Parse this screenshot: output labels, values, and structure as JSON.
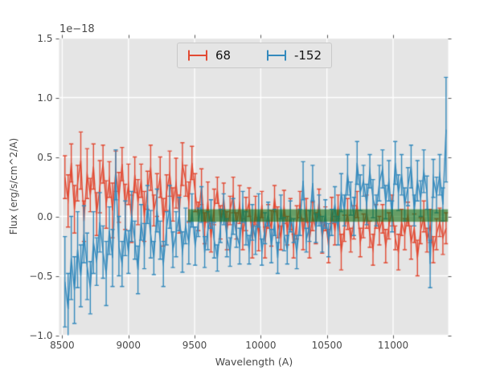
{
  "figure": {
    "offset_text": "1e−18",
    "xlabel": "Wavelength (A)",
    "ylabel": "Flux (erg/s/cm^2/A)",
    "colors": {
      "page_background": "#ffffff",
      "axes_background": "#e5e5e5",
      "grid": "#ffffff",
      "tick": "#555555",
      "label_text": "#4a4a4a",
      "legend_background": "#e5e5e5",
      "legend_border": "#c9c9c9",
      "legend_text": "#141414"
    }
  },
  "legend": {
    "entries": [
      {
        "label": "68"
      },
      {
        "label": "-152"
      }
    ]
  },
  "chart_data": {
    "type": "line",
    "style": "errorbar",
    "title": "",
    "xlabel": "Wavelength (A)",
    "ylabel": "Flux (erg/s/cm^2/A)",
    "scale_offset": "1e-18",
    "grid": true,
    "legend_position": "upper center",
    "xlim": [
      8476,
      11416
    ],
    "ylim": [
      -1.0,
      1.5
    ],
    "xticks": [
      8500,
      9000,
      9500,
      10000,
      10500,
      11000
    ],
    "xtick_labels": [
      "8500",
      "9000",
      "9500",
      "10000",
      "10500",
      "11000"
    ],
    "yticks": [
      -1.0,
      -0.5,
      0.0,
      0.5,
      1.0,
      1.5
    ],
    "ytick_labels": [
      "−1.0",
      "−0.5",
      "0.0",
      "0.5",
      "1.0",
      "1.5"
    ],
    "band": {
      "x_start": 9450,
      "x_end": 11416,
      "y_low": -0.045,
      "y_high": 0.06,
      "color": "rgba(25,115,25,0.62)"
    },
    "series": [
      {
        "name": "68",
        "color": "#e24a33",
        "x_start": 8520,
        "x_step": 24,
        "y": [
          0.33,
          0.13,
          0.45,
          0.06,
          0.28,
          0.47,
          -0.04,
          0.36,
          0.18,
          0.42,
          0.02,
          0.25,
          0.44,
          0.1,
          0.31,
          0.05,
          0.38,
          0.16,
          0.44,
          0.08,
          0.27,
          -0.02,
          0.35,
          0.12,
          0.3,
          0.0,
          0.22,
          0.41,
          0.05,
          0.18,
          0.33,
          -0.05,
          0.2,
          0.36,
          0.1,
          0.28,
          0.02,
          0.44,
          0.3,
          0.12,
          0.45,
          0.2,
          0.0,
          0.25,
          -0.1,
          0.12,
          -0.18,
          0.08,
          0.22,
          -0.05,
          0.15,
          -0.12,
          0.05,
          0.18,
          -0.08,
          0.1,
          -0.15,
          0.02,
          0.12,
          -0.2,
          0.05,
          -0.15,
          0.1,
          -0.22,
          0.0,
          -0.1,
          0.15,
          -0.05,
          -0.18,
          0.08,
          -0.12,
          0.02,
          -0.25,
          -0.05,
          0.1,
          -0.15,
          0.05,
          -0.2,
          0.0,
          -0.1,
          0.12,
          -0.18,
          -0.02,
          -0.25,
          0.05,
          -0.12,
          0.08,
          -0.3,
          -0.1,
          0.02,
          -0.2,
          -0.05,
          0.1,
          -0.22,
          -0.08,
          0.04,
          -0.15,
          -0.28,
          0.0,
          -0.12,
          -0.02,
          -0.25,
          -0.08,
          0.05,
          -0.18,
          -0.3,
          -0.05,
          -0.15,
          0.02,
          -0.22,
          -0.1,
          -0.35,
          -0.12,
          0.0,
          -0.2,
          -0.08,
          -0.28,
          -0.15,
          -0.05,
          -0.18,
          -0.1
        ],
        "yerr": [
          0.18,
          0.22,
          0.16,
          0.2,
          0.15,
          0.24,
          0.17,
          0.21,
          0.14,
          0.19,
          0.18,
          0.22,
          0.16,
          0.2,
          0.15,
          0.23,
          0.17,
          0.21,
          0.14,
          0.19,
          0.17,
          0.2,
          0.15,
          0.19,
          0.14,
          0.21,
          0.16,
          0.19,
          0.13,
          0.18,
          0.17,
          0.2,
          0.15,
          0.19,
          0.14,
          0.21,
          0.16,
          0.18,
          0.13,
          0.17,
          0.14,
          0.16,
          0.12,
          0.15,
          0.13,
          0.17,
          0.12,
          0.15,
          0.11,
          0.14,
          0.13,
          0.16,
          0.12,
          0.15,
          0.11,
          0.16,
          0.13,
          0.14,
          0.12,
          0.15,
          0.12,
          0.14,
          0.11,
          0.13,
          0.1,
          0.15,
          0.11,
          0.13,
          0.1,
          0.14,
          0.12,
          0.13,
          0.1,
          0.14,
          0.11,
          0.13,
          0.1,
          0.15,
          0.12,
          0.13,
          0.11,
          0.13,
          0.1,
          0.14,
          0.11,
          0.12,
          0.1,
          0.15,
          0.11,
          0.13,
          0.1,
          0.14,
          0.11,
          0.12,
          0.1,
          0.14,
          0.11,
          0.13,
          0.1,
          0.12,
          0.12,
          0.14,
          0.11,
          0.13,
          0.1,
          0.15,
          0.11,
          0.13,
          0.1,
          0.14,
          0.12,
          0.15,
          0.11,
          0.13,
          0.1,
          0.14,
          0.11,
          0.13,
          0.12,
          0.14,
          0.13
        ]
      },
      {
        "name": "-152",
        "color": "#348abd",
        "x_start": 8520,
        "x_step": 24,
        "y": [
          -0.55,
          -0.78,
          -0.35,
          -0.62,
          -0.28,
          -0.5,
          -0.15,
          -0.42,
          -0.6,
          -0.22,
          -0.38,
          -0.05,
          -0.3,
          -0.48,
          -0.12,
          -0.35,
          0.35,
          -0.25,
          -0.4,
          -0.1,
          -0.3,
          0.0,
          -0.2,
          -0.45,
          -0.05,
          -0.25,
          0.1,
          -0.15,
          -0.35,
          0.05,
          -0.2,
          -0.4,
          -0.1,
          0.08,
          -0.28,
          -0.15,
          0.02,
          -0.3,
          -0.08,
          -0.22,
          0.05,
          -0.25,
          -0.05,
          0.1,
          -0.3,
          -0.12,
          0.02,
          -0.2,
          -0.35,
          -0.08,
          0.06,
          -0.18,
          -0.3,
          0.0,
          -0.15,
          -0.25,
          0.08,
          -0.1,
          -0.28,
          -0.05,
          -0.2,
          0.05,
          -0.3,
          -0.1,
          0.02,
          -0.25,
          -0.05,
          -0.35,
          0.08,
          -0.15,
          -0.28,
          0.0,
          -0.12,
          -0.3,
          -0.05,
          0.3,
          -0.2,
          -0.08,
          0.28,
          -0.1,
          0.05,
          -0.15,
          0.02,
          -0.2,
          -0.05,
          0.1,
          -0.12,
          0.2,
          0.05,
          0.35,
          0.15,
          0.0,
          0.45,
          0.2,
          0.3,
          0.1,
          0.38,
          0.15,
          0.05,
          0.28,
          0.4,
          0.12,
          0.3,
          0.0,
          0.45,
          0.2,
          0.35,
          0.1,
          0.25,
          0.42,
          0.05,
          0.3,
          0.15,
          0.38,
          0.2,
          -0.4,
          0.32,
          0.18,
          0.35,
          0.1,
          0.73
        ],
        "yerr": [
          0.38,
          0.3,
          0.35,
          0.28,
          0.32,
          0.26,
          0.24,
          0.28,
          0.22,
          0.26,
          0.2,
          0.25,
          0.22,
          0.27,
          0.2,
          0.24,
          0.21,
          0.25,
          0.19,
          0.23,
          0.18,
          0.21,
          0.16,
          0.2,
          0.15,
          0.19,
          0.16,
          0.2,
          0.14,
          0.18,
          0.16,
          0.19,
          0.14,
          0.18,
          0.15,
          0.19,
          0.14,
          0.17,
          0.15,
          0.18,
          0.14,
          0.16,
          0.12,
          0.15,
          0.13,
          0.16,
          0.12,
          0.15,
          0.11,
          0.14,
          0.13,
          0.16,
          0.12,
          0.15,
          0.11,
          0.15,
          0.13,
          0.14,
          0.12,
          0.15,
          0.12,
          0.14,
          0.11,
          0.13,
          0.1,
          0.14,
          0.11,
          0.13,
          0.1,
          0.14,
          0.12,
          0.13,
          0.1,
          0.14,
          0.11,
          0.16,
          0.1,
          0.13,
          0.15,
          0.12,
          0.13,
          0.15,
          0.12,
          0.14,
          0.11,
          0.15,
          0.12,
          0.16,
          0.13,
          0.17,
          0.14,
          0.16,
          0.18,
          0.15,
          0.13,
          0.17,
          0.14,
          0.16,
          0.13,
          0.15,
          0.16,
          0.14,
          0.17,
          0.13,
          0.18,
          0.15,
          0.17,
          0.14,
          0.16,
          0.18,
          0.13,
          0.17,
          0.15,
          0.18,
          0.14,
          0.2,
          0.16,
          0.15,
          0.17,
          0.14,
          0.44
        ]
      }
    ]
  }
}
